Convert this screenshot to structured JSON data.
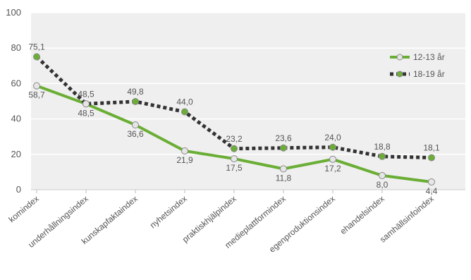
{
  "chart_data": {
    "type": "line",
    "categories": [
      "komindex",
      "underhållningsindex",
      "kunskapfaktaindex",
      "nyhetsindex",
      "praktiskhjälpindex",
      "medieplattformindex",
      "egenproduktionsindex",
      "ehandelsindex",
      "samhällsinfoindex"
    ],
    "series": [
      {
        "name": "12-13 år",
        "values": [
          58.7,
          48.5,
          36.6,
          21.9,
          17.5,
          11.8,
          17.2,
          8.0,
          4.4
        ],
        "labels": [
          "58,7",
          "48,5",
          "36,6",
          "21,9",
          "17,5",
          "11,8",
          "17,2",
          "8,0",
          "4,4"
        ],
        "color": "#6aae35",
        "marker_fill": "#e6e6e6",
        "line_style": "solid"
      },
      {
        "name": "18-19 år",
        "values": [
          75.1,
          48.5,
          49.8,
          44.0,
          23.2,
          23.6,
          24.0,
          18.8,
          18.1
        ],
        "labels": [
          "75,1",
          "48,5",
          "49,8",
          "44,0",
          "23,2",
          "23,6",
          "24,0",
          "18,8",
          "18,1"
        ],
        "color": "#333333",
        "marker_fill": "#6aae35",
        "line_style": "dotted"
      }
    ],
    "ylim": [
      0,
      100
    ],
    "yticks": [
      0,
      20,
      40,
      60,
      80,
      100
    ],
    "grid": true,
    "legend": "top-right",
    "background": "#efefef"
  }
}
